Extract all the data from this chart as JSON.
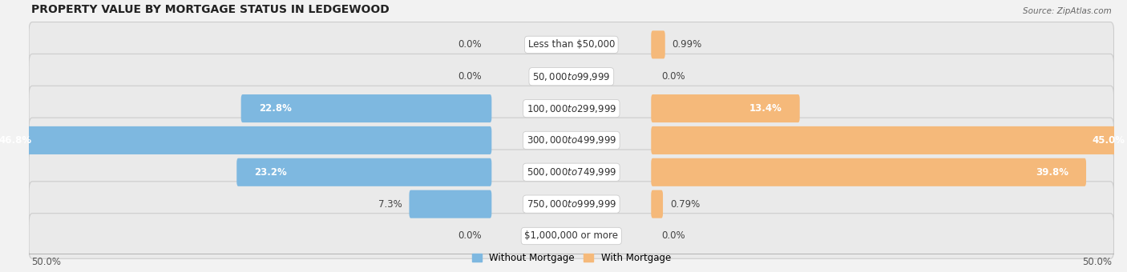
{
  "title": "PROPERTY VALUE BY MORTGAGE STATUS IN LEDGEWOOD",
  "source": "Source: ZipAtlas.com",
  "categories": [
    "Less than $50,000",
    "$50,000 to $99,999",
    "$100,000 to $299,999",
    "$300,000 to $499,999",
    "$500,000 to $749,999",
    "$750,000 to $999,999",
    "$1,000,000 or more"
  ],
  "without_mortgage": [
    0.0,
    0.0,
    22.8,
    46.8,
    23.2,
    7.3,
    0.0
  ],
  "with_mortgage": [
    0.99,
    0.0,
    13.4,
    45.0,
    39.8,
    0.79,
    0.0
  ],
  "without_mortgage_labels": [
    "0.0%",
    "0.0%",
    "22.8%",
    "46.8%",
    "23.2%",
    "7.3%",
    "0.0%"
  ],
  "with_mortgage_labels": [
    "0.99%",
    "0.0%",
    "13.4%",
    "45.0%",
    "39.8%",
    "0.79%",
    "0.0%"
  ],
  "color_without": "#7eb8e0",
  "color_with": "#f5b97a",
  "xlim": 50.0,
  "axis_label_left": "50.0%",
  "axis_label_right": "50.0%",
  "background_color": "#f2f2f2",
  "row_bg_color": "#e8e8e8",
  "legend_without": "Without Mortgage",
  "legend_with": "With Mortgage",
  "inside_label_threshold": 10.0,
  "inside_label_color": "white",
  "outside_label_color": "#444444",
  "label_fontsize": 8.5,
  "cat_fontsize": 8.5,
  "title_fontsize": 10,
  "source_fontsize": 7.5
}
